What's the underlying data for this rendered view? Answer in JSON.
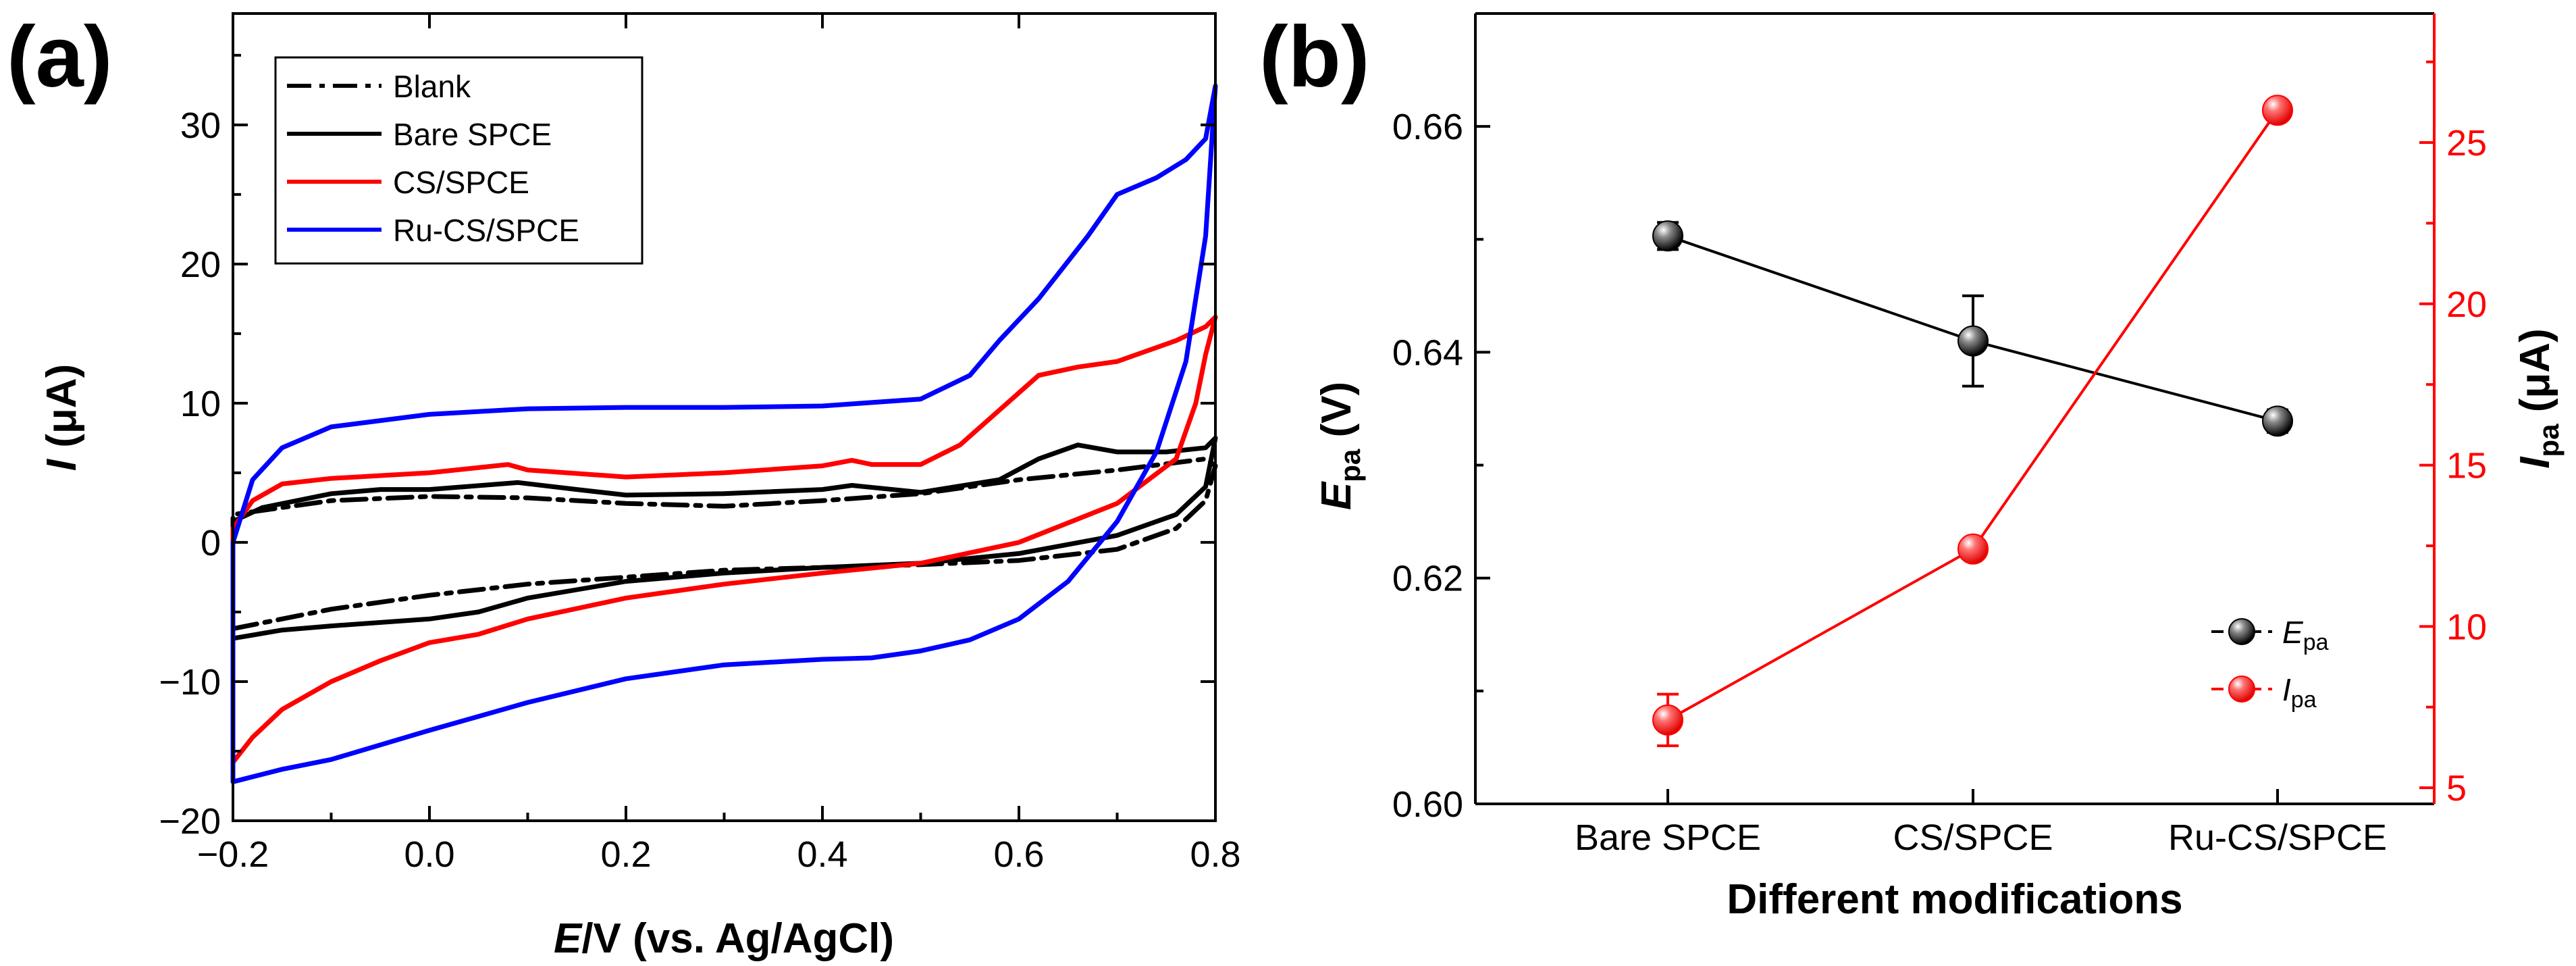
{
  "colors": {
    "blank": "#000000",
    "bare": "#000000",
    "cs": "#ff0000",
    "rucs": "#0000ff",
    "epa": "#000000",
    "ipa": "#ff0000"
  },
  "chart_data": [
    {
      "panel": "(a)",
      "type": "line",
      "title": "",
      "xlabel_italic": "E",
      "xlabel_rest": "/V (vs. Ag/AgCl)",
      "ylabel_italic": "I",
      "ylabel_rest": " (μA)",
      "xlim": [
        -0.2,
        0.8
      ],
      "ylim": [
        -20,
        38
      ],
      "x_ticks": [
        -0.2,
        0.0,
        0.2,
        0.4,
        0.6,
        0.8
      ],
      "x_tick_labels": [
        "−0.2",
        "0.0",
        "0.2",
        "0.4",
        "0.6",
        "0.8"
      ],
      "y_ticks": [
        -20,
        -10,
        0,
        10,
        20,
        30
      ],
      "y_tick_labels": [
        "−20",
        "−10",
        "0",
        "10",
        "20",
        "30"
      ],
      "legend_position": "top-left",
      "series": [
        {
          "name": "Blank",
          "style": "dashdot",
          "color_key": "blank",
          "points": [
            [
              -0.2,
              -6.2
            ],
            [
              -0.1,
              -4.8
            ],
            [
              0.0,
              -3.8
            ],
            [
              0.1,
              -3.0
            ],
            [
              0.2,
              -2.5
            ],
            [
              0.3,
              -2.0
            ],
            [
              0.4,
              -1.8
            ],
            [
              0.5,
              -1.6
            ],
            [
              0.6,
              -1.3
            ],
            [
              0.7,
              -0.5
            ],
            [
              0.76,
              1.0
            ],
            [
              0.79,
              3.0
            ],
            [
              0.8,
              5.5
            ],
            [
              0.79,
              6.0
            ],
            [
              0.7,
              5.2
            ],
            [
              0.6,
              4.5
            ],
            [
              0.5,
              3.5
            ],
            [
              0.4,
              3.0
            ],
            [
              0.3,
              2.6
            ],
            [
              0.2,
              2.8
            ],
            [
              0.1,
              3.2
            ],
            [
              0.0,
              3.3
            ],
            [
              -0.1,
              3.0
            ],
            [
              -0.2,
              2.0
            ],
            [
              -0.2,
              -6.2
            ]
          ]
        },
        {
          "name": "Bare SPCE",
          "style": "solid",
          "color_key": "bare",
          "points": [
            [
              -0.2,
              -6.9
            ],
            [
              -0.15,
              -6.3
            ],
            [
              -0.1,
              -6.0
            ],
            [
              0.0,
              -5.5
            ],
            [
              0.05,
              -5.0
            ],
            [
              0.1,
              -4.0
            ],
            [
              0.2,
              -2.8
            ],
            [
              0.3,
              -2.2
            ],
            [
              0.4,
              -1.8
            ],
            [
              0.5,
              -1.5
            ],
            [
              0.6,
              -0.8
            ],
            [
              0.7,
              0.5
            ],
            [
              0.76,
              2.0
            ],
            [
              0.79,
              4.0
            ],
            [
              0.8,
              7.5
            ],
            [
              0.79,
              6.8
            ],
            [
              0.75,
              6.5
            ],
            [
              0.7,
              6.5
            ],
            [
              0.66,
              7.0
            ],
            [
              0.62,
              6.0
            ],
            [
              0.58,
              4.5
            ],
            [
              0.5,
              3.6
            ],
            [
              0.43,
              4.1
            ],
            [
              0.4,
              3.8
            ],
            [
              0.3,
              3.5
            ],
            [
              0.2,
              3.4
            ],
            [
              0.15,
              3.8
            ],
            [
              0.09,
              4.3
            ],
            [
              0.0,
              3.8
            ],
            [
              -0.05,
              3.8
            ],
            [
              -0.1,
              3.5
            ],
            [
              -0.17,
              2.5
            ],
            [
              -0.2,
              1.5
            ],
            [
              -0.2,
              -6.9
            ]
          ]
        },
        {
          "name": "CS/SPCE",
          "style": "solid",
          "color_key": "cs",
          "points": [
            [
              -0.2,
              -15.8
            ],
            [
              -0.18,
              -14.0
            ],
            [
              -0.15,
              -12.0
            ],
            [
              -0.1,
              -10.0
            ],
            [
              -0.05,
              -8.5
            ],
            [
              0.0,
              -7.2
            ],
            [
              0.05,
              -6.6
            ],
            [
              0.1,
              -5.5
            ],
            [
              0.2,
              -4.0
            ],
            [
              0.3,
              -3.0
            ],
            [
              0.4,
              -2.2
            ],
            [
              0.5,
              -1.5
            ],
            [
              0.6,
              0.0
            ],
            [
              0.7,
              2.8
            ],
            [
              0.76,
              6.0
            ],
            [
              0.78,
              10.0
            ],
            [
              0.79,
              13.5
            ],
            [
              0.8,
              16.2
            ],
            [
              0.79,
              15.5
            ],
            [
              0.76,
              14.5
            ],
            [
              0.7,
              13.0
            ],
            [
              0.66,
              12.6
            ],
            [
              0.62,
              12.0
            ],
            [
              0.58,
              9.5
            ],
            [
              0.54,
              7.0
            ],
            [
              0.5,
              5.6
            ],
            [
              0.45,
              5.6
            ],
            [
              0.43,
              5.9
            ],
            [
              0.4,
              5.5
            ],
            [
              0.3,
              5.0
            ],
            [
              0.2,
              4.7
            ],
            [
              0.1,
              5.2
            ],
            [
              0.08,
              5.6
            ],
            [
              0.0,
              5.0
            ],
            [
              -0.1,
              4.6
            ],
            [
              -0.15,
              4.2
            ],
            [
              -0.18,
              3.0
            ],
            [
              -0.2,
              1.0
            ],
            [
              -0.2,
              -15.8
            ]
          ]
        },
        {
          "name": "Ru-CS/SPCE",
          "style": "solid",
          "color_key": "rucs",
          "points": [
            [
              -0.2,
              -17.2
            ],
            [
              -0.15,
              -16.3
            ],
            [
              -0.1,
              -15.6
            ],
            [
              0.0,
              -13.5
            ],
            [
              0.1,
              -11.5
            ],
            [
              0.2,
              -9.8
            ],
            [
              0.3,
              -8.8
            ],
            [
              0.4,
              -8.4
            ],
            [
              0.45,
              -8.3
            ],
            [
              0.5,
              -7.8
            ],
            [
              0.55,
              -7.0
            ],
            [
              0.6,
              -5.5
            ],
            [
              0.65,
              -2.8
            ],
            [
              0.7,
              1.5
            ],
            [
              0.74,
              6.5
            ],
            [
              0.77,
              13.0
            ],
            [
              0.79,
              22.0
            ],
            [
              0.8,
              32.8
            ],
            [
              0.79,
              29.0
            ],
            [
              0.77,
              27.5
            ],
            [
              0.74,
              26.2
            ],
            [
              0.7,
              25.0
            ],
            [
              0.67,
              22.0
            ],
            [
              0.62,
              17.5
            ],
            [
              0.58,
              14.5
            ],
            [
              0.55,
              12.0
            ],
            [
              0.5,
              10.3
            ],
            [
              0.4,
              9.8
            ],
            [
              0.3,
              9.7
            ],
            [
              0.2,
              9.7
            ],
            [
              0.1,
              9.6
            ],
            [
              0.0,
              9.2
            ],
            [
              -0.1,
              8.3
            ],
            [
              -0.15,
              6.8
            ],
            [
              -0.18,
              4.5
            ],
            [
              -0.2,
              0.0
            ],
            [
              -0.2,
              -17.2
            ]
          ]
        }
      ]
    },
    {
      "panel": "(b)",
      "type": "line",
      "title": "",
      "xlabel": "Different modifications",
      "categories": [
        "Bare SPCE",
        "CS/SPCE",
        "Ru-CS/SPCE"
      ],
      "ylabel_left_italic": "E",
      "ylabel_left_sub": "pa",
      "ylabel_left_rest": " (V)",
      "ylabel_right_italic": "I",
      "ylabel_right_sub": "pa",
      "ylabel_right_rest": " (μA)",
      "ylim_left": [
        0.6,
        0.67
      ],
      "ylim_right": [
        4.5,
        29.0
      ],
      "y_left_ticks": [
        0.6,
        0.62,
        0.64,
        0.66
      ],
      "y_left_tick_labels": [
        "0.60",
        "0.62",
        "0.64",
        "0.66"
      ],
      "y_right_ticks": [
        5,
        10,
        15,
        20,
        25
      ],
      "y_right_tick_labels": [
        "5",
        "10",
        "15",
        "20",
        "25"
      ],
      "legend_position": "bottom-right",
      "series": [
        {
          "name_italic": "E",
          "name_sub": "pa",
          "axis": "left",
          "color_key": "epa",
          "values": [
            0.6503,
            0.641,
            0.6339
          ],
          "errors": [
            0.0012,
            0.004,
            0.001
          ]
        },
        {
          "name_italic": "I",
          "name_sub": "pa",
          "axis": "right",
          "color_key": "ipa",
          "values": [
            7.1,
            12.4,
            26.0
          ],
          "errors": [
            0.8,
            0.3,
            0.3
          ]
        }
      ]
    }
  ]
}
